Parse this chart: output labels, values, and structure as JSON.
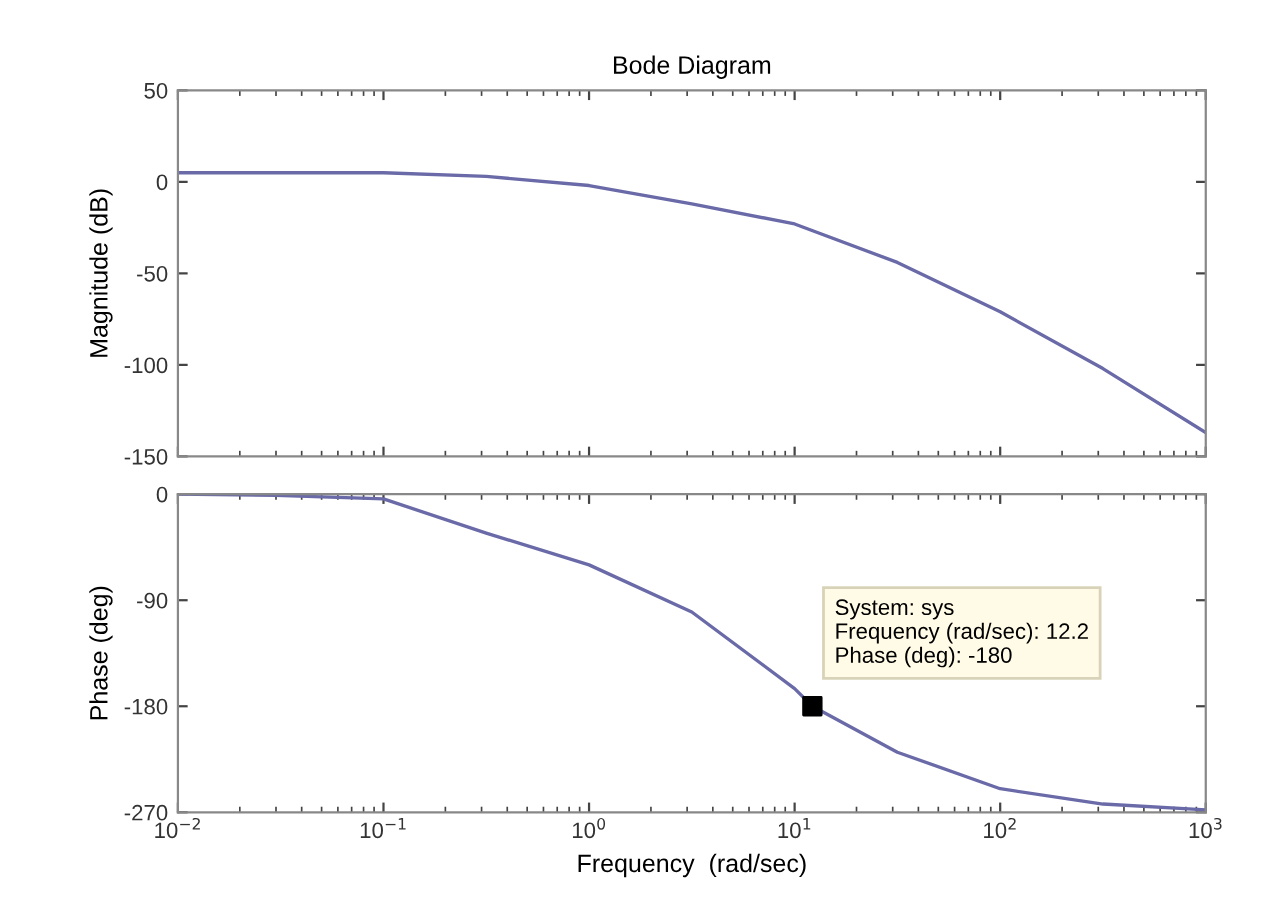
{
  "chart_data": [
    {
      "type": "line",
      "title": "Bode Diagram",
      "ylabel": "Magnitude (dB)",
      "log": "x",
      "grid": false,
      "tick_labels": "y",
      "xlim": [
        0.01,
        1000
      ],
      "xticks": [
        0.01,
        0.1,
        1,
        10,
        100,
        1000
      ],
      "ylim": [
        -150,
        50
      ],
      "yticks": [
        -150,
        -100,
        -50,
        0,
        50
      ],
      "series": [
        {
          "color": "#6a6aa8",
          "x": [
            0.01,
            0.03,
            0.1,
            0.316,
            1,
            3.16,
            10,
            31.6,
            100,
            316,
            1000
          ],
          "values": [
            5,
            5,
            5,
            3,
            -2,
            -12,
            -23,
            -44,
            -71,
            -102,
            -137
          ]
        }
      ]
    },
    {
      "type": "line",
      "xlabel": "Frequency  (rad/sec)",
      "ylabel": "Phase (deg)",
      "log": "x",
      "grid": false,
      "xlim": [
        0.01,
        1000
      ],
      "xticks": [
        {
          "value": 0.01,
          "label": "10$^{−2}$"
        },
        {
          "value": 0.1,
          "label": "10$^{−1}$"
        },
        {
          "value": 1,
          "label": "10$^{0}$"
        },
        {
          "value": 10,
          "label": "10$^{1}$"
        },
        {
          "value": 100,
          "label": "10$^{2}$"
        },
        {
          "value": 1000,
          "label": "10$^{3}$"
        }
      ],
      "ylim": [
        -270,
        0
      ],
      "yticks": [
        -270,
        -180,
        -90,
        0
      ],
      "series": [
        {
          "color": "#6a6aa8",
          "x": [
            0.01,
            0.03,
            0.1,
            0.316,
            1,
            3.16,
            10,
            12.2,
            31.6,
            100,
            316,
            1000
          ],
          "values": [
            0,
            -1,
            -4,
            -33,
            -60,
            -100,
            -165,
            -180,
            -219,
            -250,
            -263,
            -268
          ]
        },
        {
          "type": "scatter",
          "marker": "square",
          "color": "#000000",
          "x": [
            12.2
          ],
          "values": [
            -180
          ]
        }
      ],
      "annotations": [
        {
          "text": "System: sys\nFrequency (rad/sec): 12.2\nPhase (deg): -180",
          "x": 12.2,
          "y": -180
        }
      ]
    }
  ]
}
